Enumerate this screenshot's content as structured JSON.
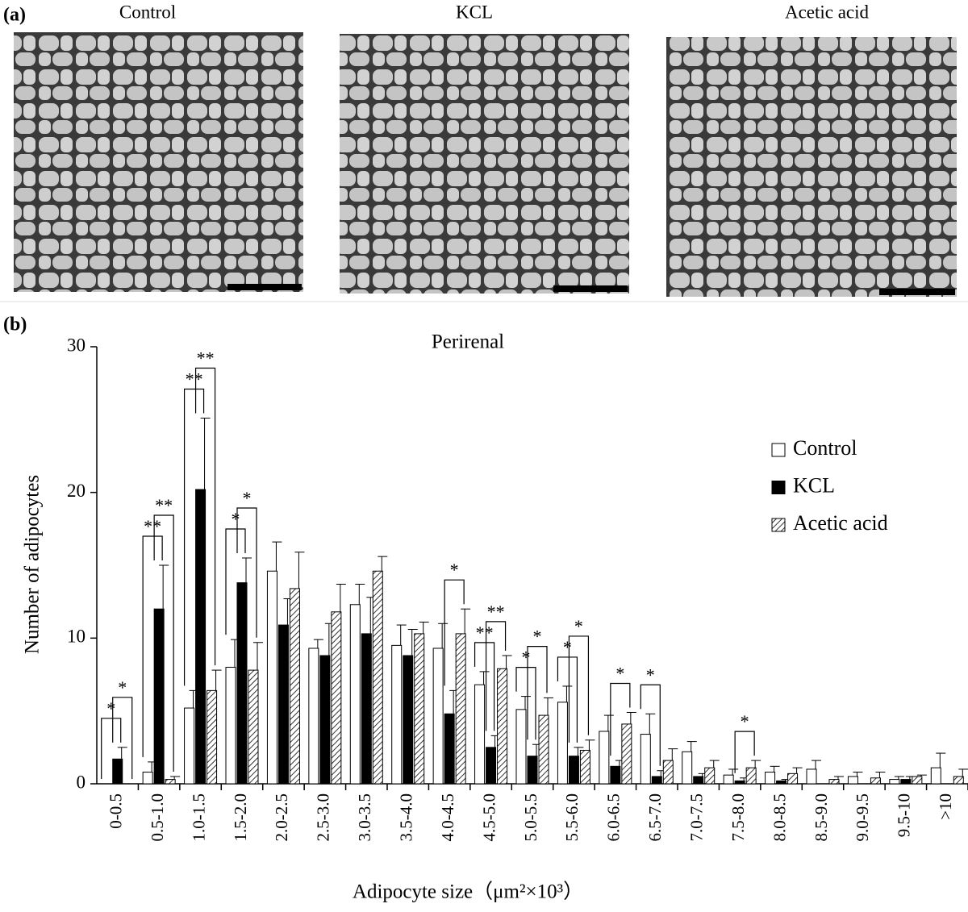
{
  "panels": {
    "a": "(a)",
    "b": "(b)"
  },
  "images": [
    {
      "title": "Control"
    },
    {
      "title": "KCL"
    },
    {
      "title": "Acetic acid"
    }
  ],
  "chart_data": {
    "type": "bar",
    "title": "Perirenal",
    "x_label": "Adipocyte size（μm²×10³）",
    "y_label": "Number of adipocytes",
    "categories": [
      "0-0.5",
      "0.5-1.0",
      "1.0-1.5",
      "1.5-2.0",
      "2.0-2.5",
      "2.5-3.0",
      "3.0-3.5",
      "3.5-4.0",
      "4.0-4.5",
      "4.5-5.0",
      "5.0-5.5",
      "5.5-6.0",
      "6.0-6.5",
      "6.5-7.0",
      "7.0-7.5",
      "7.5-8.0",
      "8.0-8.5",
      "8.5-9.0",
      "9.0-9.5",
      "9.5-10",
      ">10"
    ],
    "series": [
      {
        "name": "Control",
        "color": "#ffffff",
        "values": [
          0,
          0.8,
          5.2,
          8.0,
          14.6,
          9.3,
          12.3,
          9.5,
          9.3,
          6.8,
          5.1,
          5.6,
          3.6,
          3.4,
          2.2,
          0.6,
          0.8,
          1.0,
          0.5,
          0.3,
          1.1
        ],
        "errors": [
          0,
          0.7,
          1.2,
          1.9,
          2.0,
          0.6,
          1.4,
          1.4,
          1.7,
          0.9,
          0.9,
          1.1,
          1.1,
          1.4,
          0.7,
          0.4,
          0.4,
          0.6,
          0.3,
          0.2,
          1.0
        ]
      },
      {
        "name": "KCL",
        "color": "#000000",
        "values": [
          1.7,
          12,
          20.2,
          13.8,
          10.9,
          8.8,
          10.3,
          8.8,
          4.8,
          2.5,
          1.9,
          1.9,
          1.2,
          0.5,
          0.5,
          0.2,
          0.2,
          0,
          0,
          0.3,
          0
        ],
        "errors": [
          0.8,
          3,
          4.9,
          1.7,
          1.8,
          2.2,
          2.5,
          1.8,
          1.6,
          0.8,
          0.8,
          0.6,
          0.4,
          0.4,
          0.2,
          0.2,
          0.1,
          0,
          0,
          0.2,
          0
        ]
      },
      {
        "name": "Acetic acid",
        "color": "#ffffff",
        "hatch": true,
        "values": [
          0,
          0.3,
          6.4,
          7.8,
          13.4,
          11.8,
          14.6,
          10.3,
          10.3,
          7.9,
          4.7,
          2.3,
          4.1,
          1.6,
          1.1,
          1.1,
          0.7,
          0.3,
          0.4,
          0.5,
          0.5
        ],
        "errors": [
          0,
          0.2,
          1.4,
          1.9,
          2.5,
          1.9,
          1.0,
          0.8,
          1.7,
          0.9,
          1.2,
          0.7,
          0.8,
          0.8,
          0.5,
          0.5,
          0.4,
          0.2,
          0.4,
          0.1,
          0.5
        ]
      }
    ],
    "ylim": [
      0,
      30
    ],
    "yticks": [
      0,
      10,
      20,
      30
    ],
    "grid": false,
    "legend": "right",
    "annotations": [
      {
        "category": "0-0.5",
        "between": [
          "Control",
          "KCL"
        ],
        "label": "*"
      },
      {
        "category": "0-0.5",
        "between": [
          "KCL",
          "Acetic acid"
        ],
        "label": "*"
      },
      {
        "category": "0.5-1.0",
        "between": [
          "Control",
          "KCL"
        ],
        "label": "**"
      },
      {
        "category": "0.5-1.0",
        "between": [
          "KCL",
          "Acetic acid"
        ],
        "label": "**"
      },
      {
        "category": "1.0-1.5",
        "between": [
          "Control",
          "KCL"
        ],
        "label": "**"
      },
      {
        "category": "1.0-1.5",
        "between": [
          "KCL",
          "Acetic acid"
        ],
        "label": "**"
      },
      {
        "category": "1.5-2.0",
        "between": [
          "Control",
          "KCL"
        ],
        "label": "*"
      },
      {
        "category": "1.5-2.0",
        "between": [
          "KCL",
          "Acetic acid"
        ],
        "label": "*"
      },
      {
        "category": "4.0-4.5",
        "between": [
          "KCL",
          "Acetic acid"
        ],
        "label": "*"
      },
      {
        "category": "4.5-5.0",
        "between": [
          "Control",
          "KCL"
        ],
        "label": "**"
      },
      {
        "category": "4.5-5.0",
        "between": [
          "KCL",
          "Acetic acid"
        ],
        "label": "**"
      },
      {
        "category": "5.0-5.5",
        "between": [
          "Control",
          "KCL"
        ],
        "label": "*"
      },
      {
        "category": "5.0-5.5",
        "between": [
          "KCL",
          "Acetic acid"
        ],
        "label": "*"
      },
      {
        "category": "5.5-6.0",
        "between": [
          "Control",
          "KCL"
        ],
        "label": "*"
      },
      {
        "category": "5.5-6.0",
        "between": [
          "KCL",
          "Acetic acid"
        ],
        "label": "*"
      },
      {
        "category": "6.0-6.5",
        "between": [
          "KCL",
          "Acetic acid"
        ],
        "label": "*"
      },
      {
        "category": "6.5-7.0",
        "between": [
          "Control",
          "KCL"
        ],
        "label": "*"
      },
      {
        "category": "7.5-8.0",
        "between": [
          "KCL",
          "Acetic acid"
        ],
        "label": "*"
      }
    ]
  }
}
